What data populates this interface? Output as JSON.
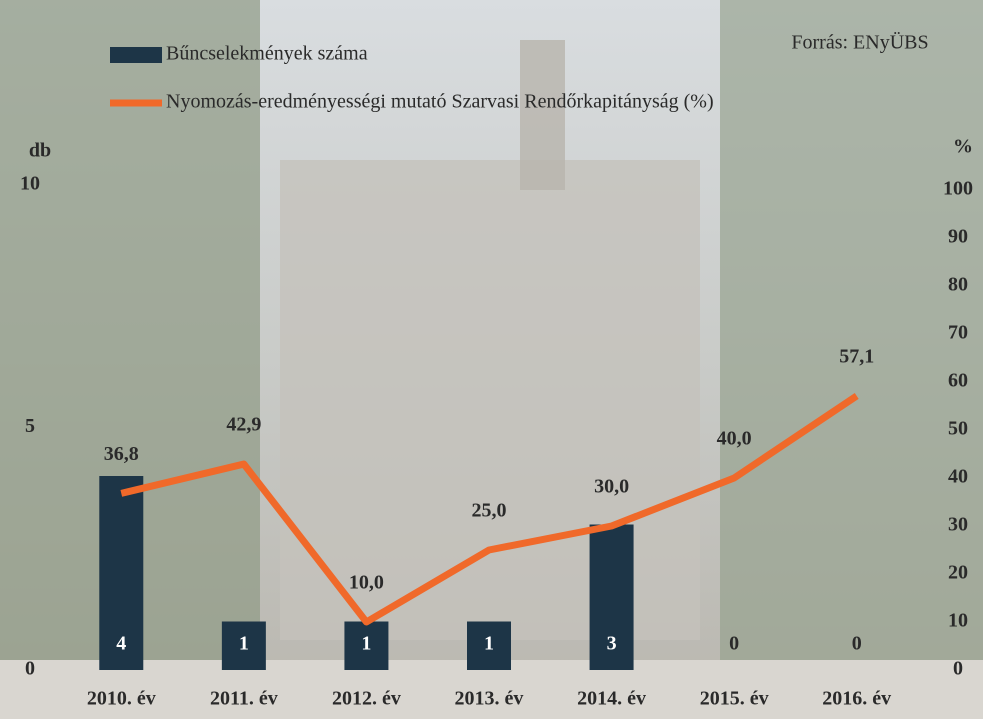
{
  "chart_data": {
    "type": "combo",
    "source": "Forrás: ENyÜBS",
    "y_label": "db",
    "y2_label": "%",
    "categories": [
      "2010. év",
      "2011. év",
      "2012. év",
      "2013. év",
      "2014. év",
      "2015. év",
      "2016. év"
    ],
    "series": [
      {
        "name": "Bűncselekmények száma",
        "type": "bar",
        "color": "#1d3547",
        "values": [
          4,
          1,
          1,
          1,
          3,
          0,
          0
        ]
      },
      {
        "name": "Nyomozás-eredményességi mutató Szarvasi Rendőrkapitányság (%)",
        "type": "line",
        "axis": "y2",
        "color": "#f0692a",
        "values": [
          36.8,
          42.9,
          10.0,
          25.0,
          30.0,
          40.0,
          57.1
        ],
        "value_labels": [
          "36,8",
          "42,9",
          "10,0",
          "25,0",
          "30,0",
          "40,0",
          "57,1"
        ]
      }
    ],
    "ylim": [
      0,
      10
    ],
    "yticks": [
      0,
      5,
      10
    ],
    "y2lim": [
      0,
      100
    ],
    "y2ticks": [
      0,
      10,
      20,
      30,
      40,
      50,
      60,
      70,
      80,
      90,
      100
    ],
    "legend": "upper left"
  }
}
